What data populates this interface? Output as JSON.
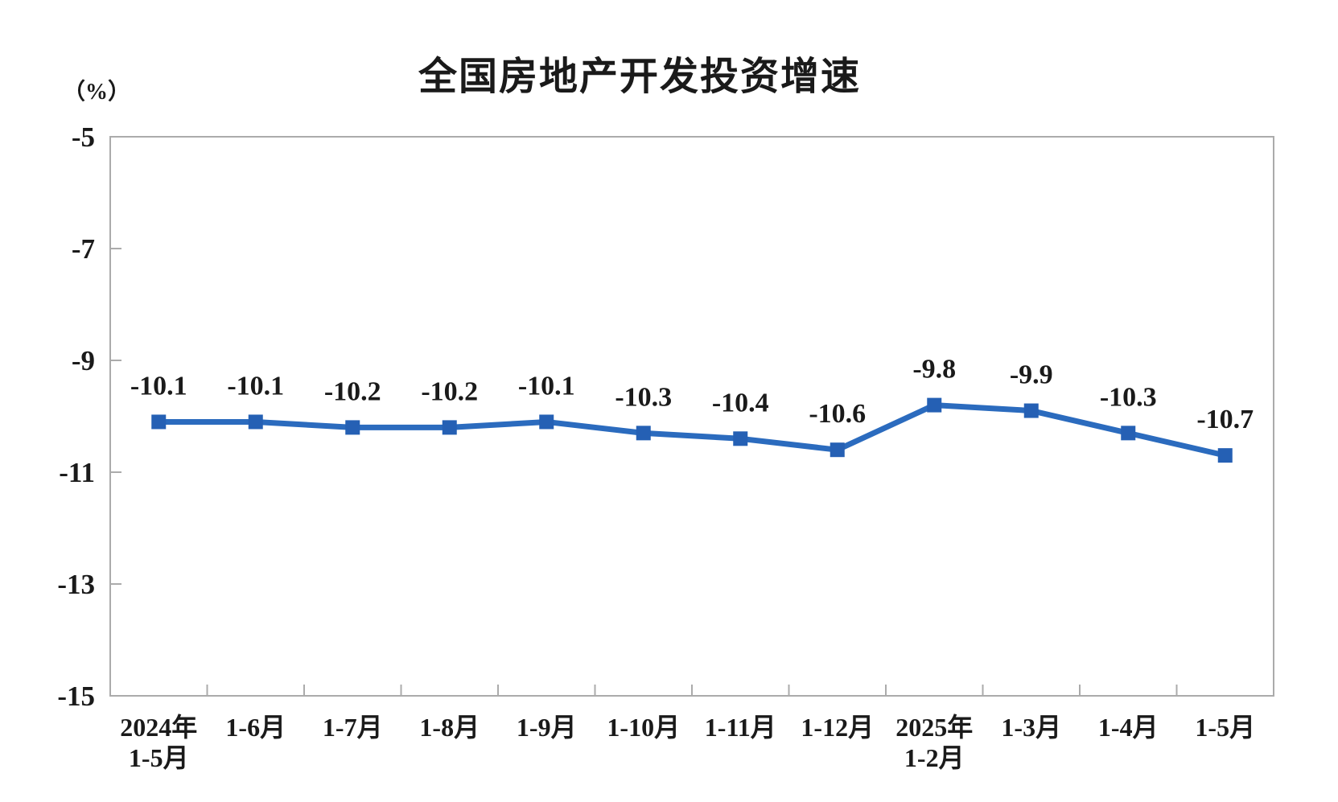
{
  "chart_data": {
    "type": "line",
    "title": "全国房地产开发投资增速",
    "unit_label": "（%）",
    "categories": [
      "2024年\n1-5月",
      "1-6月",
      "1-7月",
      "1-8月",
      "1-9月",
      "1-10月",
      "1-11月",
      "1-12月",
      "2025年\n1-2月",
      "1-3月",
      "1-4月",
      "1-5月"
    ],
    "values": [
      -10.1,
      -10.1,
      -10.2,
      -10.2,
      -10.1,
      -10.3,
      -10.4,
      -10.6,
      -9.8,
      -9.9,
      -10.3,
      -10.7
    ],
    "data_labels": [
      "-10.1",
      "-10.1",
      "-10.2",
      "-10.2",
      "-10.1",
      "-10.3",
      "-10.4",
      "-10.6",
      "-9.8",
      "-9.9",
      "-10.3",
      "-10.7"
    ],
    "xlabel": "",
    "ylabel": "（%）",
    "ylim": [
      -15,
      -5
    ],
    "yticks": [
      -5,
      -7,
      -9,
      -11,
      -13,
      -15
    ],
    "ytick_labels": [
      "-5",
      "-7",
      "-9",
      "-11",
      "-13",
      "-15"
    ],
    "grid": false,
    "legend_position": "none",
    "line_color": "#2B6BBE",
    "marker_color": "#2560B4",
    "marker_shape": "square",
    "axis_color": "#ABABAB",
    "text_color": "#1a1a1a"
  }
}
